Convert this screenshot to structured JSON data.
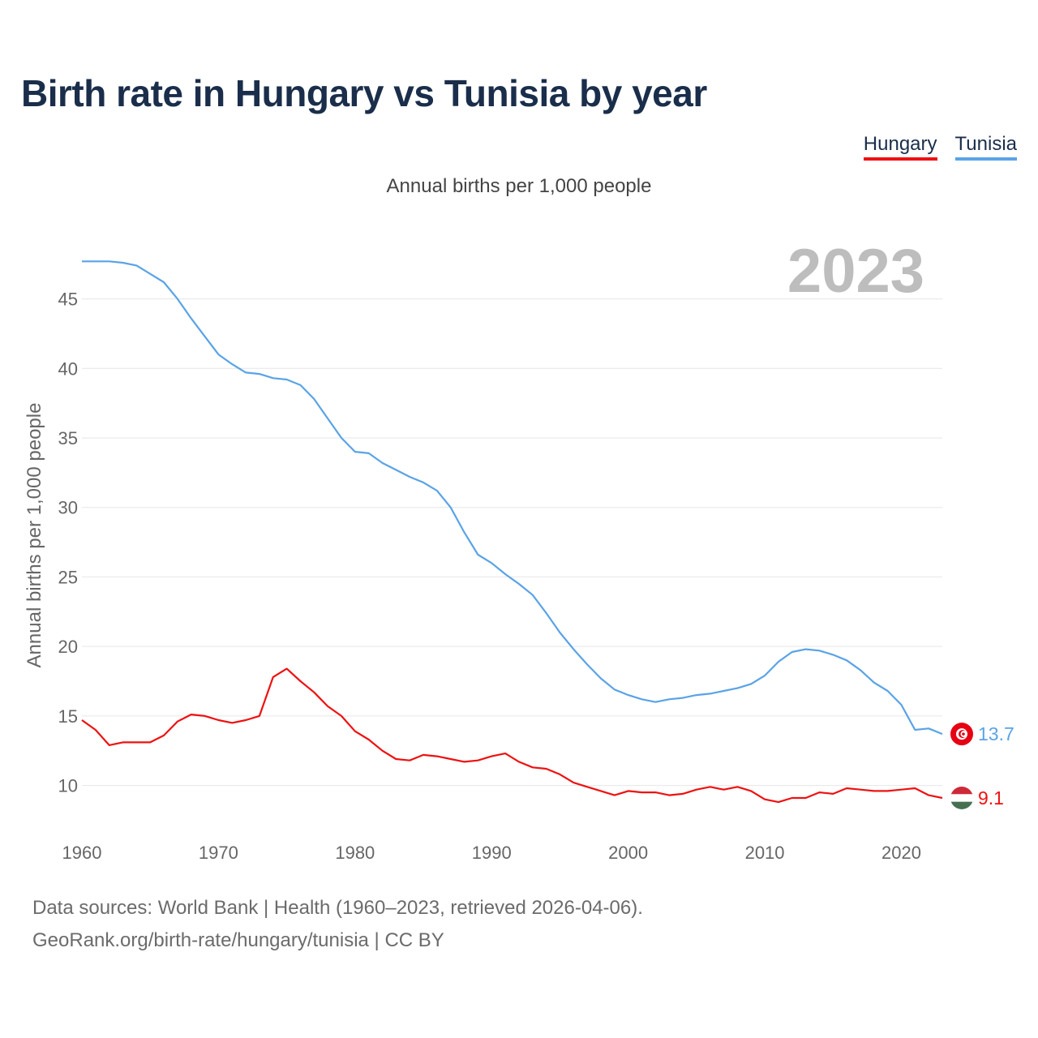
{
  "title": "Birth rate in Hungary vs Tunisia by year",
  "subtitle": "Annual births per 1,000 people",
  "legend": [
    {
      "name": "Hungary",
      "color": "#ee1111"
    },
    {
      "name": "Tunisia",
      "color": "#5aa3e6"
    }
  ],
  "year_label": "2023",
  "end_labels": {
    "hungary": "9.1",
    "tunisia": "13.7"
  },
  "footer": {
    "source": "Data sources: World Bank | Health (1960–2023, retrieved 2026-04-06).",
    "credit": "GeoRank.org/birth-rate/hungary/tunisia | CC BY"
  },
  "chart_data": {
    "type": "line",
    "title": "Birth rate in Hungary vs Tunisia by year",
    "subtitle": "Annual births per 1,000 people",
    "xlabel": "",
    "ylabel": "Annual births per 1,000 people",
    "xlim": [
      1960,
      2023
    ],
    "ylim": [
      7,
      49
    ],
    "x_ticks": [
      1960,
      1970,
      1980,
      1990,
      2000,
      2010,
      2020
    ],
    "y_ticks": [
      10,
      15,
      20,
      25,
      30,
      35,
      40,
      45
    ],
    "grid": true,
    "legend_position": "top-right",
    "x": [
      1960,
      1961,
      1962,
      1963,
      1964,
      1965,
      1966,
      1967,
      1968,
      1969,
      1970,
      1971,
      1972,
      1973,
      1974,
      1975,
      1976,
      1977,
      1978,
      1979,
      1980,
      1981,
      1982,
      1983,
      1984,
      1985,
      1986,
      1987,
      1988,
      1989,
      1990,
      1991,
      1992,
      1993,
      1994,
      1995,
      1996,
      1997,
      1998,
      1999,
      2000,
      2001,
      2002,
      2003,
      2004,
      2005,
      2006,
      2007,
      2008,
      2009,
      2010,
      2011,
      2012,
      2013,
      2014,
      2015,
      2016,
      2017,
      2018,
      2019,
      2020,
      2021,
      2022,
      2023
    ],
    "series": [
      {
        "name": "Hungary",
        "color": "#ee1111",
        "values": [
          14.7,
          14.0,
          12.9,
          13.1,
          13.1,
          13.1,
          13.6,
          14.6,
          15.1,
          15.0,
          14.7,
          14.5,
          14.7,
          15.0,
          17.8,
          18.4,
          17.5,
          16.7,
          15.7,
          15.0,
          13.9,
          13.3,
          12.5,
          11.9,
          11.8,
          12.2,
          12.1,
          11.9,
          11.7,
          11.8,
          12.1,
          12.3,
          11.7,
          11.3,
          11.2,
          10.8,
          10.2,
          9.9,
          9.6,
          9.3,
          9.6,
          9.5,
          9.5,
          9.3,
          9.4,
          9.7,
          9.9,
          9.7,
          9.9,
          9.6,
          9.0,
          8.8,
          9.1,
          9.1,
          9.5,
          9.4,
          9.8,
          9.7,
          9.6,
          9.6,
          9.7,
          9.8,
          9.3,
          9.1
        ]
      },
      {
        "name": "Tunisia",
        "color": "#5aa3e6",
        "values": [
          47.7,
          47.7,
          47.7,
          47.6,
          47.4,
          46.8,
          46.2,
          45.0,
          43.6,
          42.3,
          41.0,
          40.3,
          39.7,
          39.6,
          39.3,
          39.2,
          38.8,
          37.8,
          36.4,
          35.0,
          34.0,
          33.9,
          33.2,
          32.7,
          32.2,
          31.8,
          31.2,
          30.0,
          28.2,
          26.6,
          26.0,
          25.2,
          24.5,
          23.7,
          22.4,
          21.0,
          19.8,
          18.7,
          17.7,
          16.9,
          16.5,
          16.2,
          16.0,
          16.2,
          16.3,
          16.5,
          16.6,
          16.8,
          17.0,
          17.3,
          17.9,
          18.9,
          19.6,
          19.8,
          19.7,
          19.4,
          19.0,
          18.3,
          17.4,
          16.8,
          15.8,
          14.0,
          14.1,
          13.7
        ]
      }
    ]
  }
}
